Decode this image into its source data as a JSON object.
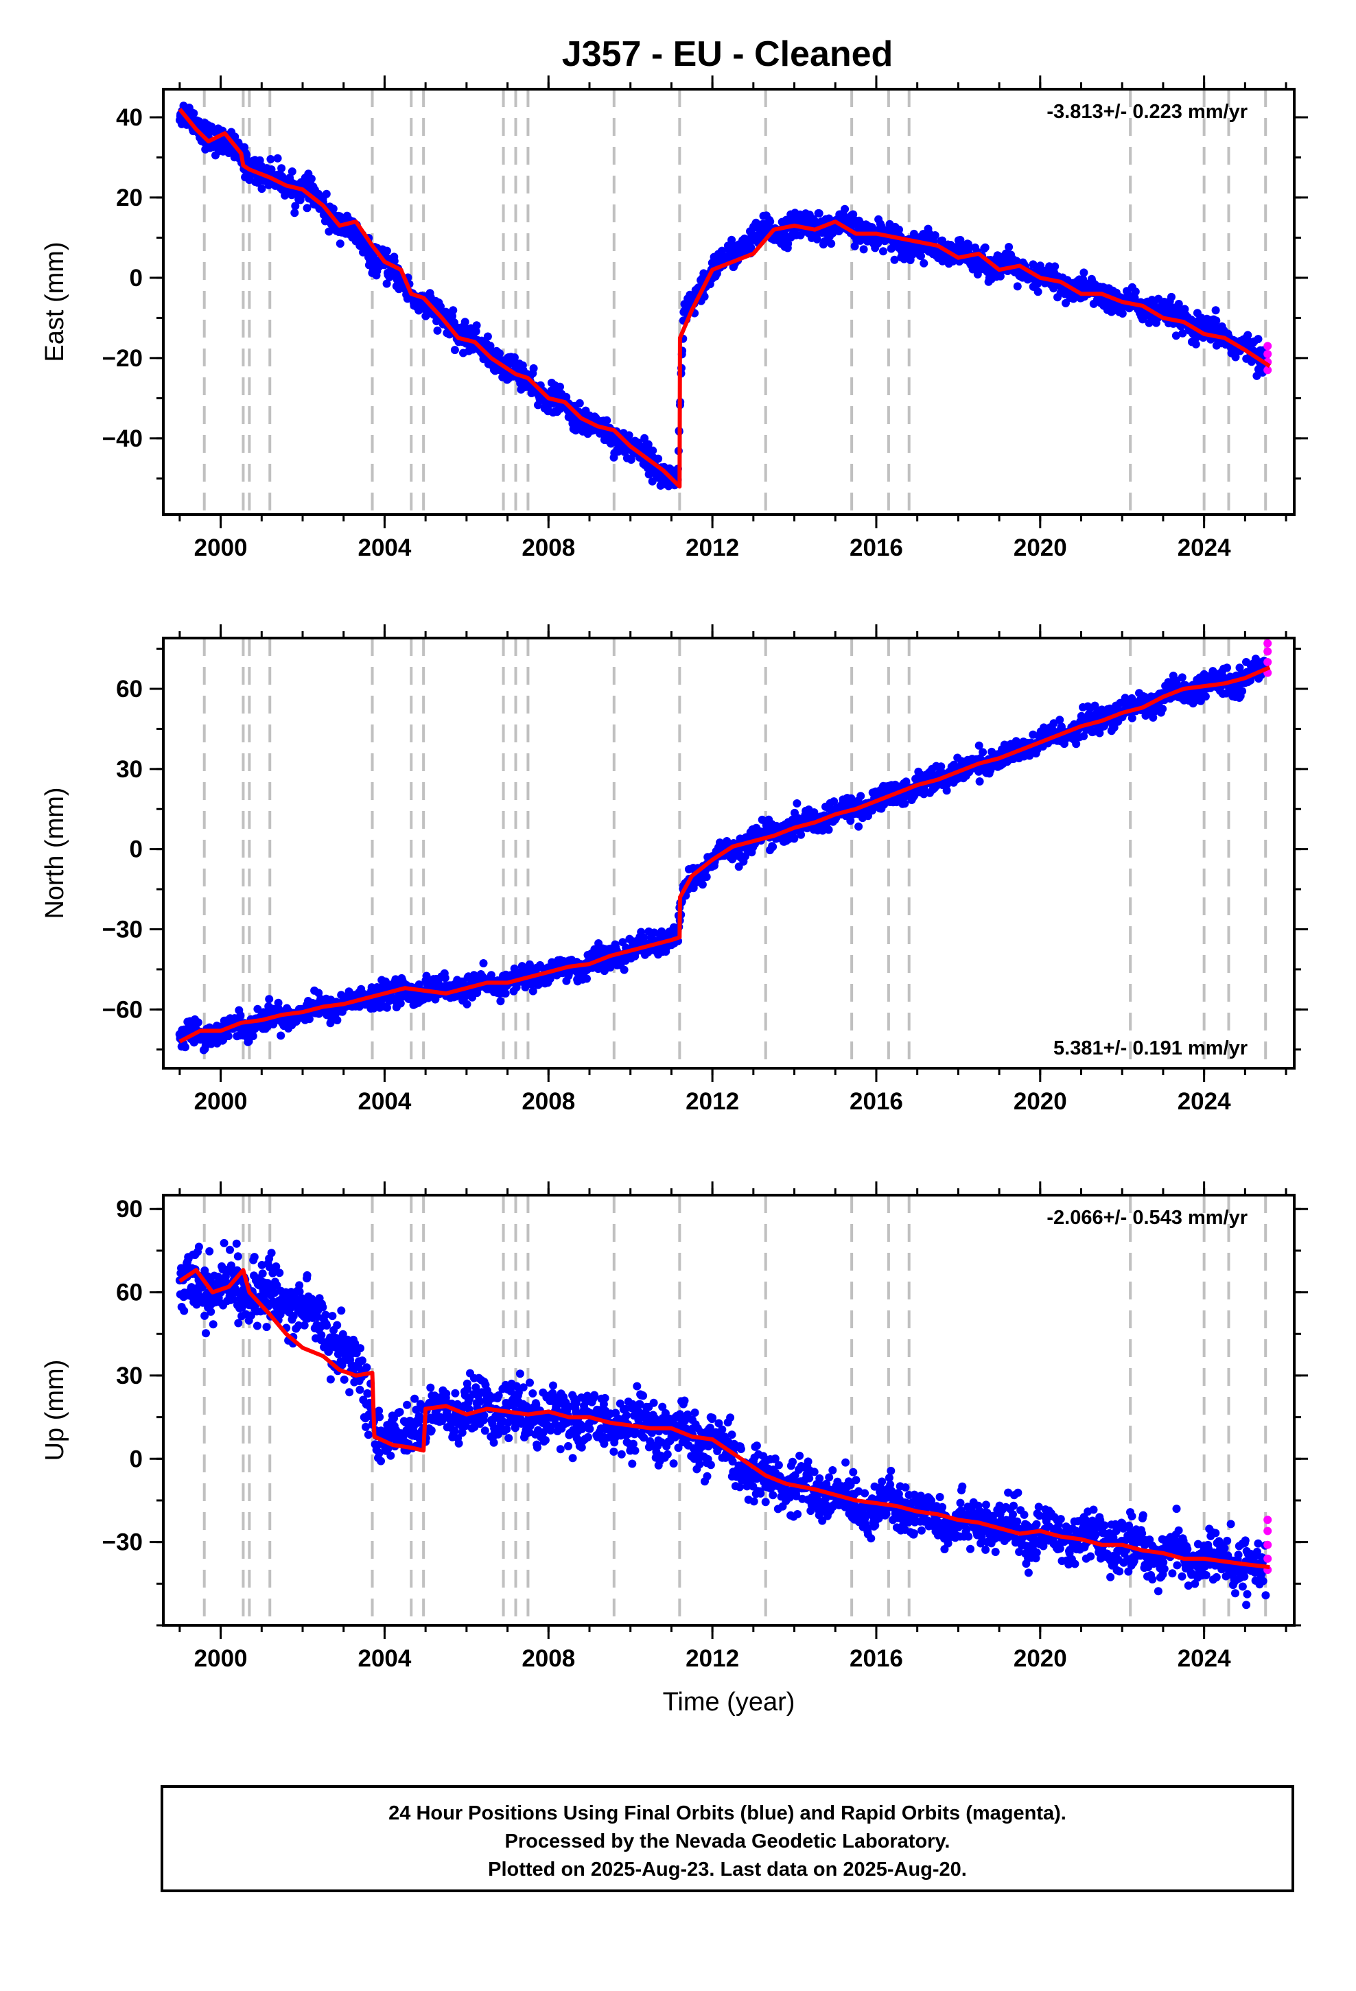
{
  "title": "J357  - EU - Cleaned",
  "footer": {
    "line1": "24 Hour Positions Using Final Orbits (blue) and Rapid Orbits (magenta).",
    "line2": "Processed by the Nevada Geodetic Laboratory.",
    "line3": "Plotted on 2025-Aug-23. Last data on 2025-Aug-20."
  },
  "colors": {
    "final_orbits": "#0000ff",
    "rapid_orbits": "#ff00ff",
    "model": "#ff0000",
    "events": "#c0c0c0"
  },
  "chart_data": [
    {
      "type": "scatter",
      "name": "east",
      "ylabel": "East (mm)",
      "xlabel": "",
      "rate_label": "-3.813+/- 0.223 mm/yr",
      "rate_position": "top-right",
      "xlim": [
        1998.6,
        2026.2
      ],
      "ylim": [
        -59,
        47
      ],
      "xticks": [
        2000,
        2004,
        2008,
        2012,
        2016,
        2020,
        2024
      ],
      "xtick_labels": [
        "2000",
        "2004",
        "2008",
        "2012",
        "2016",
        "2020",
        "2024"
      ],
      "yticks": [
        -40,
        -20,
        0,
        20,
        40
      ],
      "ytick_labels": [
        "−40",
        "−20",
        "0",
        "20",
        "40"
      ],
      "events": [
        1999.6,
        2000.55,
        2000.7,
        2001.2,
        2003.7,
        2004.65,
        2004.95,
        2006.9,
        2007.2,
        2007.5,
        2009.6,
        2011.2,
        2013.3,
        2015.4,
        2016.3,
        2016.8,
        2022.2,
        2024.0,
        2024.6,
        2025.5
      ],
      "model_x": [
        1999.0,
        1999.4,
        1999.7,
        2000.1,
        2000.5,
        2000.55,
        2000.7,
        2001.2,
        2001.6,
        2002.0,
        2002.5,
        2002.9,
        2003.3,
        2003.7,
        2004.0,
        2004.4,
        2004.65,
        2004.95,
        2005.4,
        2005.8,
        2006.2,
        2006.6,
        2006.9,
        2007.2,
        2007.5,
        2008.0,
        2008.4,
        2008.8,
        2009.2,
        2009.6,
        2010.0,
        2010.4,
        2010.8,
        2011.2,
        2011.21,
        2011.5,
        2012.0,
        2012.5,
        2013.0,
        2013.5,
        2014.0,
        2014.5,
        2015.0,
        2015.5,
        2016.0,
        2016.5,
        2017.0,
        2017.5,
        2018.0,
        2018.5,
        2019.0,
        2019.5,
        2020.0,
        2020.5,
        2021.0,
        2021.5,
        2022.0,
        2022.5,
        2023.0,
        2023.5,
        2024.0,
        2024.5,
        2025.0,
        2025.6
      ],
      "model_y": [
        42,
        37,
        34,
        36,
        31,
        28,
        27,
        25,
        23,
        22,
        18,
        13,
        14,
        8,
        4,
        2,
        -4,
        -5,
        -10,
        -15,
        -16,
        -20,
        -22,
        -24,
        -25,
        -30,
        -31,
        -35,
        -37,
        -38,
        -42,
        -45,
        -48,
        -52,
        -15,
        -8,
        2,
        4,
        6,
        12,
        13,
        12,
        14,
        11,
        11,
        10,
        9,
        8,
        5,
        6,
        2,
        3,
        0,
        -1,
        -4,
        -4,
        -6,
        -7,
        -10,
        -11,
        -14,
        -15,
        -18,
        -22
      ],
      "data_envelope": [
        {
          "x": 1999.0,
          "y": 41,
          "spread": 3
        },
        {
          "x": 2000.0,
          "y": 34,
          "spread": 3
        },
        {
          "x": 2001.0,
          "y": 26,
          "spread": 3
        },
        {
          "x": 2002.0,
          "y": 22,
          "spread": 3
        },
        {
          "x": 2003.0,
          "y": 13,
          "spread": 3
        },
        {
          "x": 2004.0,
          "y": 3,
          "spread": 3
        },
        {
          "x": 2005.0,
          "y": -7,
          "spread": 3
        },
        {
          "x": 2006.0,
          "y": -15,
          "spread": 3
        },
        {
          "x": 2007.0,
          "y": -22,
          "spread": 3
        },
        {
          "x": 2008.0,
          "y": -30,
          "spread": 3
        },
        {
          "x": 2009.0,
          "y": -36,
          "spread": 3
        },
        {
          "x": 2010.0,
          "y": -42,
          "spread": 3
        },
        {
          "x": 2011.15,
          "y": -51,
          "spread": 3
        },
        {
          "x": 2011.3,
          "y": -10,
          "spread": 3
        },
        {
          "x": 2012.0,
          "y": 2,
          "spread": 3
        },
        {
          "x": 2013.0,
          "y": 10,
          "spread": 3
        },
        {
          "x": 2014.0,
          "y": 13,
          "spread": 3
        },
        {
          "x": 2015.0,
          "y": 13,
          "spread": 3
        },
        {
          "x": 2016.0,
          "y": 11,
          "spread": 3
        },
        {
          "x": 2017.0,
          "y": 8,
          "spread": 3
        },
        {
          "x": 2018.0,
          "y": 6,
          "spread": 3
        },
        {
          "x": 2019.0,
          "y": 3,
          "spread": 3
        },
        {
          "x": 2020.0,
          "y": 0,
          "spread": 3
        },
        {
          "x": 2021.0,
          "y": -3,
          "spread": 3
        },
        {
          "x": 2022.0,
          "y": -6,
          "spread": 3
        },
        {
          "x": 2023.0,
          "y": -9,
          "spread": 3
        },
        {
          "x": 2024.0,
          "y": -13,
          "spread": 3
        },
        {
          "x": 2025.0,
          "y": -17,
          "spread": 3
        },
        {
          "x": 2025.5,
          "y": -22,
          "spread": 3
        }
      ],
      "rapid": [
        [
          2025.55,
          -17
        ],
        [
          2025.55,
          -19
        ],
        [
          2025.55,
          -21
        ],
        [
          2025.55,
          -23
        ]
      ]
    },
    {
      "type": "scatter",
      "name": "north",
      "ylabel": "North (mm)",
      "xlabel": "",
      "rate_label": "5.381+/- 0.191 mm/yr",
      "rate_position": "bottom-right",
      "xlim": [
        1998.6,
        2026.2
      ],
      "ylim": [
        -82,
        79
      ],
      "xticks": [
        2000,
        2004,
        2008,
        2012,
        2016,
        2020,
        2024
      ],
      "xtick_labels": [
        "2000",
        "2004",
        "2008",
        "2012",
        "2016",
        "2020",
        "2024"
      ],
      "yticks": [
        -60,
        -30,
        0,
        30,
        60
      ],
      "ytick_labels": [
        "−60",
        "−30",
        "0",
        "30",
        "60"
      ],
      "events": [
        1999.6,
        2000.55,
        2000.7,
        2001.2,
        2003.7,
        2004.65,
        2004.95,
        2006.9,
        2007.2,
        2007.5,
        2009.6,
        2011.2,
        2013.3,
        2015.4,
        2016.3,
        2016.8,
        2022.2,
        2024.0,
        2024.6,
        2025.5
      ],
      "model_x": [
        1999.0,
        1999.5,
        2000.0,
        2000.5,
        2001.0,
        2001.5,
        2002.0,
        2002.5,
        2003.0,
        2003.5,
        2004.0,
        2004.5,
        2005.0,
        2005.5,
        2006.0,
        2006.5,
        2007.0,
        2007.5,
        2008.0,
        2008.5,
        2009.0,
        2009.5,
        2010.0,
        2010.5,
        2011.0,
        2011.2,
        2011.21,
        2011.5,
        2012.0,
        2012.5,
        2013.0,
        2013.5,
        2014.0,
        2014.5,
        2015.0,
        2015.5,
        2016.0,
        2016.5,
        2017.0,
        2017.5,
        2018.0,
        2018.5,
        2019.0,
        2019.5,
        2020.0,
        2020.5,
        2021.0,
        2021.5,
        2022.0,
        2022.5,
        2023.0,
        2023.5,
        2024.0,
        2024.5,
        2025.0,
        2025.6
      ],
      "model_y": [
        -72,
        -68,
        -68,
        -65,
        -64,
        -62,
        -61,
        -59,
        -58,
        -56,
        -54,
        -52,
        -53,
        -54,
        -52,
        -50,
        -50,
        -48,
        -46,
        -44,
        -43,
        -40,
        -38,
        -36,
        -34,
        -33,
        -18,
        -10,
        -4,
        1,
        3,
        5,
        8,
        10,
        13,
        15,
        18,
        21,
        24,
        26,
        29,
        32,
        34,
        37,
        40,
        43,
        46,
        48,
        51,
        53,
        57,
        60,
        61,
        62,
        64,
        68
      ],
      "data_envelope": [
        {
          "x": 1999.0,
          "y": -70,
          "spread": 4
        },
        {
          "x": 2000.0,
          "y": -68,
          "spread": 4
        },
        {
          "x": 2001.0,
          "y": -64,
          "spread": 4
        },
        {
          "x": 2002.0,
          "y": -61,
          "spread": 4
        },
        {
          "x": 2003.0,
          "y": -58,
          "spread": 4
        },
        {
          "x": 2004.0,
          "y": -54,
          "spread": 4
        },
        {
          "x": 2005.0,
          "y": -53,
          "spread": 4
        },
        {
          "x": 2006.0,
          "y": -52,
          "spread": 4
        },
        {
          "x": 2007.0,
          "y": -50,
          "spread": 4
        },
        {
          "x": 2008.0,
          "y": -46,
          "spread": 4
        },
        {
          "x": 2009.0,
          "y": -43,
          "spread": 4
        },
        {
          "x": 2010.0,
          "y": -38,
          "spread": 4
        },
        {
          "x": 2011.15,
          "y": -33,
          "spread": 4
        },
        {
          "x": 2011.3,
          "y": -15,
          "spread": 4
        },
        {
          "x": 2012.0,
          "y": -4,
          "spread": 4
        },
        {
          "x": 2013.0,
          "y": 4,
          "spread": 4
        },
        {
          "x": 2014.0,
          "y": 8,
          "spread": 4
        },
        {
          "x": 2015.0,
          "y": 13,
          "spread": 4
        },
        {
          "x": 2016.0,
          "y": 18,
          "spread": 4
        },
        {
          "x": 2017.0,
          "y": 24,
          "spread": 4
        },
        {
          "x": 2018.0,
          "y": 29,
          "spread": 4
        },
        {
          "x": 2019.0,
          "y": 34,
          "spread": 4
        },
        {
          "x": 2020.0,
          "y": 40,
          "spread": 4
        },
        {
          "x": 2021.0,
          "y": 46,
          "spread": 4
        },
        {
          "x": 2022.0,
          "y": 51,
          "spread": 4
        },
        {
          "x": 2023.0,
          "y": 57,
          "spread": 4
        },
        {
          "x": 2024.0,
          "y": 61,
          "spread": 4
        },
        {
          "x": 2025.0,
          "y": 64,
          "spread": 4
        },
        {
          "x": 2025.5,
          "y": 68,
          "spread": 4
        }
      ],
      "rapid": [
        [
          2025.55,
          66
        ],
        [
          2025.55,
          70
        ],
        [
          2025.55,
          74
        ],
        [
          2025.55,
          77
        ]
      ]
    },
    {
      "type": "scatter",
      "name": "up",
      "ylabel": "Up (mm)",
      "xlabel": "Time (year)",
      "rate_label": "-2.066+/- 0.543 mm/yr",
      "rate_position": "top-right",
      "xlim": [
        1998.6,
        2026.2
      ],
      "ylim": [
        -60,
        95
      ],
      "xticks": [
        2000,
        2004,
        2008,
        2012,
        2016,
        2020,
        2024
      ],
      "xtick_labels": [
        "2000",
        "2004",
        "2008",
        "2012",
        "2016",
        "2020",
        "2024"
      ],
      "yticks": [
        -30,
        0,
        30,
        60,
        90
      ],
      "ytick_labels": [
        "−30",
        "0",
        "30",
        "60",
        "90"
      ],
      "events": [
        1999.6,
        2000.55,
        2000.7,
        2001.2,
        2003.7,
        2004.65,
        2004.95,
        2006.9,
        2007.2,
        2007.5,
        2009.6,
        2011.2,
        2013.3,
        2015.4,
        2016.3,
        2016.8,
        2022.2,
        2024.0,
        2024.6,
        2025.5
      ],
      "model_x": [
        1999.0,
        1999.4,
        1999.8,
        2000.2,
        2000.55,
        2000.7,
        2001.2,
        2001.6,
        2002.0,
        2002.5,
        2002.9,
        2003.3,
        2003.7,
        2003.75,
        2004.2,
        2004.65,
        2004.95,
        2005.0,
        2005.5,
        2006.0,
        2006.5,
        2007.0,
        2007.5,
        2008.0,
        2008.5,
        2009.0,
        2009.5,
        2010.0,
        2010.5,
        2011.0,
        2011.5,
        2012.0,
        2012.5,
        2013.0,
        2013.3,
        2013.8,
        2014.5,
        2015.0,
        2015.5,
        2016.0,
        2016.5,
        2017.0,
        2017.5,
        2018.0,
        2018.5,
        2019.0,
        2019.5,
        2020.0,
        2020.5,
        2021.0,
        2021.5,
        2022.0,
        2022.5,
        2023.0,
        2023.5,
        2024.0,
        2024.5,
        2025.0,
        2025.6
      ],
      "model_y": [
        64,
        68,
        60,
        62,
        68,
        60,
        52,
        45,
        40,
        37,
        32,
        30,
        31,
        8,
        5,
        4,
        3,
        18,
        19,
        16,
        18,
        17,
        16,
        17,
        15,
        15,
        13,
        12,
        11,
        11,
        8,
        7,
        2,
        -3,
        -6,
        -9,
        -11,
        -13,
        -15,
        -16,
        -17,
        -19,
        -20,
        -22,
        -23,
        -25,
        -27,
        -26,
        -28,
        -29,
        -31,
        -31,
        -33,
        -34,
        -36,
        -36,
        -37,
        -38,
        -39
      ],
      "data_envelope": [
        {
          "x": 1999.0,
          "y": 64,
          "spread": 10
        },
        {
          "x": 2000.0,
          "y": 62,
          "spread": 10
        },
        {
          "x": 2001.0,
          "y": 60,
          "spread": 10
        },
        {
          "x": 2002.0,
          "y": 55,
          "spread": 10
        },
        {
          "x": 2003.0,
          "y": 40,
          "spread": 10
        },
        {
          "x": 2003.5,
          "y": 25,
          "spread": 10
        },
        {
          "x": 2004.0,
          "y": 5,
          "spread": 6
        },
        {
          "x": 2005.0,
          "y": 15,
          "spread": 8
        },
        {
          "x": 2006.0,
          "y": 17,
          "spread": 10
        },
        {
          "x": 2007.0,
          "y": 17,
          "spread": 10
        },
        {
          "x": 2008.0,
          "y": 16,
          "spread": 9
        },
        {
          "x": 2009.0,
          "y": 14,
          "spread": 9
        },
        {
          "x": 2010.0,
          "y": 12,
          "spread": 9
        },
        {
          "x": 2011.0,
          "y": 10,
          "spread": 9
        },
        {
          "x": 2012.0,
          "y": 5,
          "spread": 9
        },
        {
          "x": 2013.0,
          "y": -5,
          "spread": 8
        },
        {
          "x": 2014.0,
          "y": -10,
          "spread": 8
        },
        {
          "x": 2015.0,
          "y": -14,
          "spread": 8
        },
        {
          "x": 2016.0,
          "y": -17,
          "spread": 8
        },
        {
          "x": 2017.0,
          "y": -19,
          "spread": 8
        },
        {
          "x": 2018.0,
          "y": -22,
          "spread": 8
        },
        {
          "x": 2019.0,
          "y": -25,
          "spread": 8
        },
        {
          "x": 2020.0,
          "y": -27,
          "spread": 8
        },
        {
          "x": 2021.0,
          "y": -29,
          "spread": 8
        },
        {
          "x": 2022.0,
          "y": -31,
          "spread": 8
        },
        {
          "x": 2023.0,
          "y": -34,
          "spread": 8
        },
        {
          "x": 2024.0,
          "y": -36,
          "spread": 8
        },
        {
          "x": 2025.0,
          "y": -38,
          "spread": 8
        },
        {
          "x": 2025.5,
          "y": -40,
          "spread": 8
        }
      ],
      "rapid": [
        [
          2025.55,
          -22
        ],
        [
          2025.55,
          -26
        ],
        [
          2025.55,
          -31
        ],
        [
          2025.55,
          -36
        ],
        [
          2025.55,
          -40
        ]
      ]
    }
  ]
}
